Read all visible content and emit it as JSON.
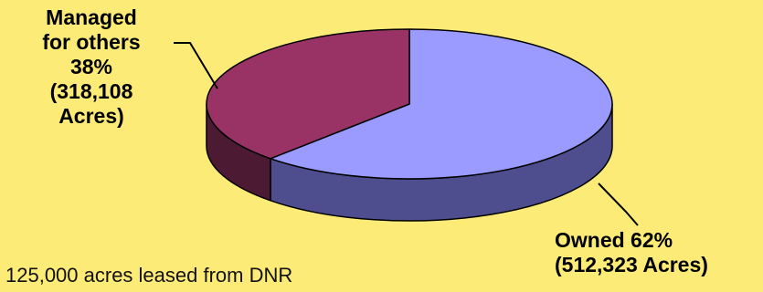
{
  "chart_data": {
    "type": "pie",
    "style": "3d",
    "slices": [
      {
        "name": "Owned",
        "percent": 62,
        "acres": 512323,
        "color": "#9a9aff",
        "side_color": "#4e4e8e",
        "label_lines": [
          "Owned 62%",
          "(512,323 Acres)"
        ]
      },
      {
        "name": "Managed for others",
        "percent": 38,
        "acres": 318108,
        "color": "#993366",
        "side_color": "#4c1a33",
        "label_lines": [
          "Managed",
          "for others",
          "38%",
          "(318,108",
          "Acres)"
        ]
      }
    ]
  },
  "footnote": "125,000 acres leased from DNR",
  "background_color": "#fdeb78"
}
